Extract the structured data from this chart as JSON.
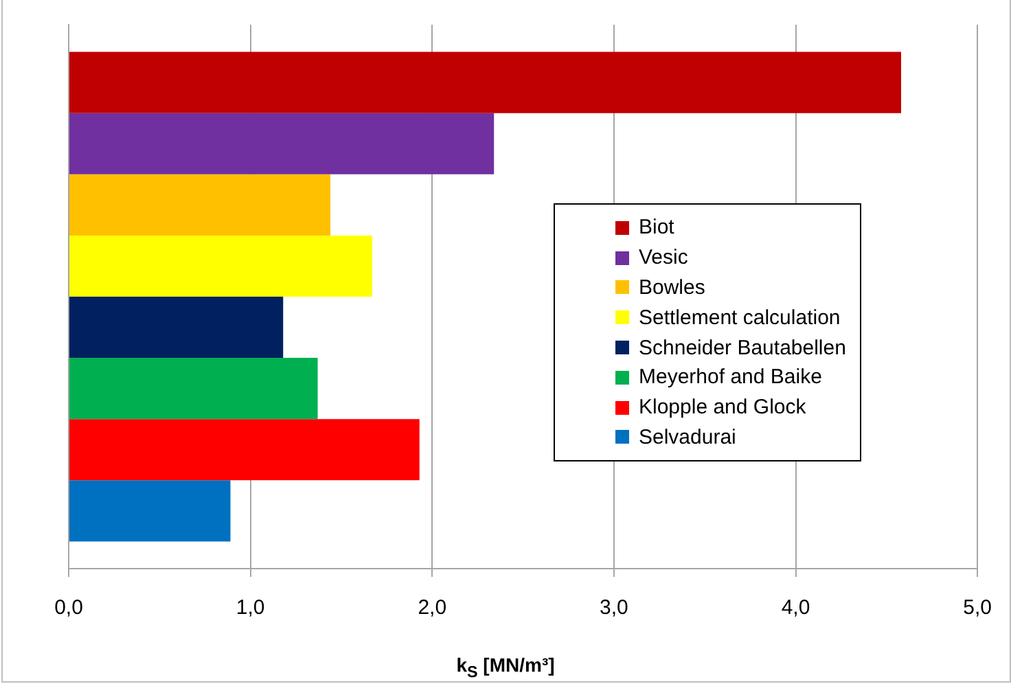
{
  "chart_data": {
    "type": "bar",
    "orientation": "horizontal",
    "categories": [
      null
    ],
    "xlabel": "k$_{S}$ [MN/m³]",
    "series": [
      {
        "name": "Biot",
        "color": "#c00000",
        "values": [
          4.58
        ]
      },
      {
        "name": "Vesic",
        "color": "#7030a0",
        "values": [
          2.34
        ]
      },
      {
        "name": "Bowles",
        "color": "#ffc000",
        "values": [
          1.44
        ]
      },
      {
        "name": "Settlement calculation",
        "color": "#ffff00",
        "values": [
          1.67
        ]
      },
      {
        "name": "Schneider Bautabellen",
        "color": "#002060",
        "values": [
          1.18
        ]
      },
      {
        "name": "Meyerhof and Baike",
        "color": "#00b050",
        "values": [
          1.37
        ]
      },
      {
        "name": "Klopple and  Glock",
        "color": "#ff0000",
        "values": [
          1.93
        ]
      },
      {
        "name": "Selvadurai",
        "color": "#0070c0",
        "values": [
          0.89
        ]
      }
    ],
    "xlim": [
      0,
      5
    ],
    "xticks": [
      {
        "value": 0,
        "label": "0,0"
      },
      {
        "value": 1,
        "label": "1,0"
      },
      {
        "value": 2,
        "label": "2,0"
      },
      {
        "value": 3,
        "label": "3,0"
      },
      {
        "value": 4,
        "label": "4,0"
      },
      {
        "value": 5,
        "label": "5,0"
      }
    ],
    "grid": "x",
    "legend": "right"
  }
}
